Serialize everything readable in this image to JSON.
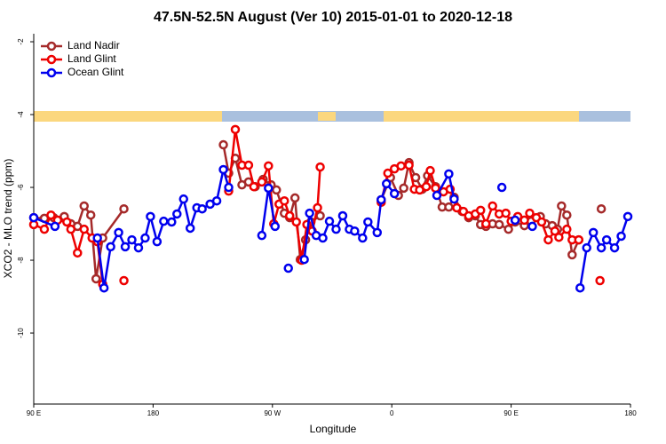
{
  "chart_data": {
    "type": "line",
    "title": "47.5N-52.5N August (Ver 10)   2015-01-01 to 2020-12-18",
    "x_label": "Longitude",
    "y_label": "XCO2 - MLO trend (ppm)",
    "xlim": [
      90,
      540
    ],
    "ylim": [
      -11.95,
      -1.78
    ],
    "xticks": [
      {
        "value": 90,
        "label": "90 E"
      },
      180,
      {
        "value": 270,
        "label": "90 W"
      },
      {
        "value": 360,
        "label": "0"
      },
      {
        "value": 450,
        "label": "90 E"
      },
      {
        "value": 540,
        "label": "180"
      }
    ],
    "yticks": [
      -2,
      -4,
      -6,
      -8,
      -10
    ],
    "legend": "top-left",
    "series": [
      {
        "name": "Land Nadir",
        "color": "#a52a2a",
        "x": [
          90,
          98,
          105,
          113,
          118,
          123,
          128,
          133,
          137,
          142,
          158,
          null,
          233,
          237,
          242,
          247,
          252,
          257,
          263,
          269,
          273,
          279,
          283,
          287,
          291,
          295,
          299,
          306,
          null,
          352,
          359,
          365,
          369,
          373,
          378,
          383,
          387,
          393,
          398,
          403,
          407,
          413,
          418,
          423,
          427,
          431,
          436,
          441,
          448,
          453,
          460,
          465,
          472,
          476,
          481,
          485,
          488,
          492,
          496,
          501,
          null,
          518
        ],
        "values": [
          -6.83,
          -6.85,
          -6.83,
          -6.8,
          -7.0,
          -7.07,
          -6.51,
          -6.76,
          -8.51,
          -7.39,
          -6.59,
          null,
          -4.83,
          -5.61,
          -5.2,
          -5.93,
          -5.85,
          -5.98,
          -5.78,
          -5.93,
          -6.07,
          -6.71,
          -6.83,
          -6.29,
          -7.98,
          -7.44,
          -6.95,
          -6.78,
          null,
          -6.34,
          -5.73,
          -6.22,
          -6.02,
          -5.32,
          -5.73,
          -6.05,
          -5.68,
          -5.98,
          -6.54,
          -6.54,
          -6.27,
          -6.66,
          -6.83,
          -6.78,
          -7.02,
          -7.07,
          -7.0,
          -7.02,
          -7.15,
          -6.95,
          -7.05,
          -6.93,
          -6.8,
          -7.0,
          -7.05,
          -7.15,
          -6.51,
          -6.76,
          -7.85,
          -7.44,
          null,
          -6.59
        ]
      },
      {
        "name": "Land Glint",
        "color": "#ee0000",
        "x": [
          90,
          98,
          103,
          108,
          115,
          118,
          123,
          128,
          134,
          138,
          142,
          null,
          158,
          null,
          237,
          242,
          247,
          252,
          256,
          262,
          267,
          271,
          275,
          279,
          283,
          288,
          292,
          296,
          300,
          304,
          306,
          null,
          352,
          357,
          362,
          367,
          373,
          377,
          381,
          386,
          389,
          393,
          399,
          404,
          409,
          414,
          418,
          423,
          427,
          431,
          436,
          441,
          446,
          450,
          455,
          460,
          464,
          469,
          473,
          478,
          483,
          486,
          492,
          496,
          501,
          null,
          517
        ],
        "values": [
          -7.02,
          -7.15,
          -6.76,
          -6.9,
          -6.95,
          -7.15,
          -7.8,
          -7.15,
          -7.39,
          -7.49,
          -8.66,
          null,
          -8.56,
          null,
          -6.1,
          -4.41,
          -5.39,
          -5.39,
          -5.98,
          -5.85,
          -5.41,
          -7.0,
          -6.46,
          -6.37,
          -6.78,
          -6.95,
          -8.0,
          -7.02,
          -7.2,
          -6.56,
          -5.44,
          null,
          -6.41,
          -5.61,
          -5.49,
          -5.41,
          -5.39,
          -6.05,
          -6.07,
          -5.98,
          -5.54,
          -6.02,
          -6.12,
          -6.05,
          -6.56,
          -6.66,
          -6.78,
          -6.73,
          -6.63,
          -7.0,
          -6.51,
          -6.73,
          -6.71,
          -6.93,
          -6.8,
          -6.9,
          -6.71,
          -6.83,
          -6.95,
          -7.44,
          -7.2,
          -7.37,
          -7.15,
          -7.44,
          -7.44,
          null,
          -8.56
        ]
      },
      {
        "name": "Ocean Glint",
        "color": "#0000ee",
        "x": [
          90,
          106,
          null,
          138,
          143,
          148,
          154,
          159,
          164,
          169,
          174,
          178,
          183,
          188,
          194,
          198,
          203,
          208,
          213,
          217,
          223,
          228,
          233,
          237,
          null,
          262,
          267,
          272,
          null,
          282,
          null,
          294,
          298,
          303,
          308,
          313,
          318,
          323,
          328,
          332,
          338,
          342,
          349,
          352,
          356,
          362,
          null,
          394,
          403,
          407,
          null,
          443,
          null,
          453,
          null,
          466,
          null,
          502,
          507,
          512,
          518,
          522,
          528,
          533,
          538
        ],
        "values": [
          -6.83,
          -7.07,
          null,
          -7.39,
          -8.76,
          -7.63,
          -7.24,
          -7.63,
          -7.44,
          -7.66,
          -7.39,
          -6.8,
          -7.49,
          -6.93,
          -6.95,
          -6.73,
          -6.32,
          -7.12,
          -6.56,
          -6.59,
          -6.46,
          -6.37,
          -5.51,
          -6.0,
          null,
          -7.32,
          -6.02,
          -7.07,
          null,
          -8.22,
          null,
          -7.98,
          -6.71,
          -7.32,
          -7.39,
          -6.93,
          -7.15,
          -6.78,
          -7.15,
          -7.2,
          -7.39,
          -6.95,
          -7.24,
          -6.34,
          -5.9,
          -6.17,
          null,
          -6.22,
          -5.63,
          -6.32,
          null,
          -6.0,
          null,
          -6.9,
          null,
          -7.07,
          null,
          -8.76,
          -7.66,
          -7.24,
          -7.66,
          -7.44,
          -7.66,
          -7.34,
          -6.8
        ]
      }
    ]
  }
}
